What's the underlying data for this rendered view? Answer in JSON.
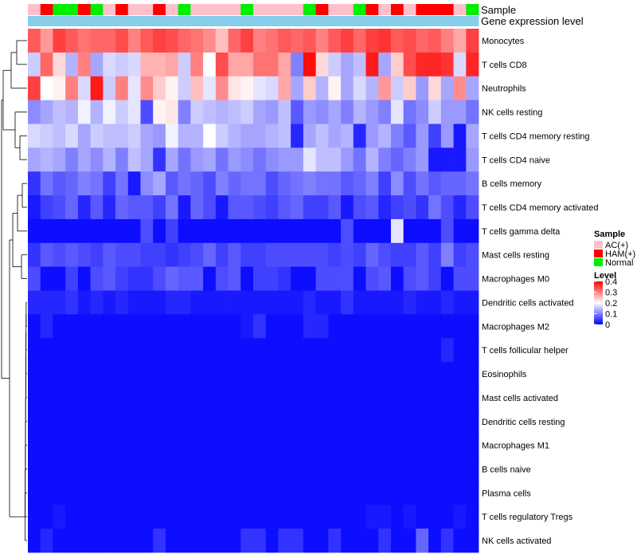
{
  "chart_data": {
    "type": "heatmap",
    "annotation_labels": {
      "sample": "Sample",
      "gene_expression": "Gene expression level"
    },
    "sample_groups": [
      "AC",
      "HAM",
      "Normal",
      "Normal",
      "HAM",
      "Normal",
      "AC",
      "HAM",
      "AC",
      "AC",
      "HAM",
      "AC",
      "Normal",
      "AC",
      "AC",
      "AC",
      "AC",
      "Normal",
      "AC",
      "AC",
      "AC",
      "AC",
      "Normal",
      "HAM",
      "AC",
      "AC",
      "Normal",
      "HAM",
      "AC",
      "HAM",
      "AC",
      "HAM",
      "HAM",
      "HAM",
      "AC",
      "Normal"
    ],
    "sample_legend": {
      "title": "Sample",
      "entries": [
        {
          "key": "AC",
          "label": "AC(+)",
          "color": "#ffc0cb"
        },
        {
          "key": "HAM",
          "label": "HAM(+)",
          "color": "#ff0000"
        },
        {
          "key": "Normal",
          "label": "Normal",
          "color": "#00ee00"
        }
      ]
    },
    "gene_expression_color": "#87ceeb",
    "level_legend": {
      "title": "Level",
      "ticks": [
        {
          "label": "0.4",
          "value": 0.4
        },
        {
          "label": "0.3",
          "value": 0.3
        },
        {
          "label": "0.2",
          "value": 0.2
        },
        {
          "label": "0.1",
          "value": 0.1
        },
        {
          "label": "0",
          "value": 0
        }
      ]
    },
    "color_scale": {
      "min": 0,
      "mid": 0.2,
      "max": 0.4,
      "low": "#0000ff",
      "mid_color": "#ffffff",
      "high": "#ff0000"
    },
    "rows": [
      "Monocytes",
      "T cells CD8",
      "Neutrophils",
      "NK cells resting",
      "T cells CD4 memory resting",
      "T cells CD4 naive",
      "B cells memory",
      "T cells CD4 memory activated",
      "T cells gamma delta",
      "Mast cells resting",
      "Macrophages M0",
      "Dendritic cells activated",
      "Macrophages M2",
      "T cells follicular helper",
      "Eosinophils",
      "Mast cells activated",
      "Dendritic cells resting",
      "Macrophages M1",
      "B cells naive",
      "Plasma cells",
      "T cells regulatory  Tregs",
      "NK cells activated"
    ],
    "values": [
      [
        0.33,
        0.28,
        0.35,
        0.33,
        0.31,
        0.32,
        0.32,
        0.34,
        0.3,
        0.33,
        0.35,
        0.34,
        0.32,
        0.31,
        0.29,
        0.25,
        0.32,
        0.35,
        0.3,
        0.31,
        0.33,
        0.32,
        0.33,
        0.3,
        0.33,
        0.35,
        0.32,
        0.35,
        0.36,
        0.33,
        0.34,
        0.32,
        0.33,
        0.3,
        0.27,
        0.35
      ],
      [
        0.16,
        0.32,
        0.23,
        0.14,
        0.3,
        0.13,
        0.17,
        0.16,
        0.17,
        0.26,
        0.26,
        0.27,
        0.16,
        0.3,
        0.2,
        0.34,
        0.27,
        0.27,
        0.31,
        0.31,
        0.27,
        0.1,
        0.39,
        0.23,
        0.16,
        0.13,
        0.15,
        0.38,
        0.13,
        0.24,
        0.34,
        0.37,
        0.37,
        0.36,
        0.17,
        0.37
      ],
      [
        0.35,
        0.2,
        0.21,
        0.3,
        0.17,
        0.38,
        0.16,
        0.3,
        0.18,
        0.29,
        0.24,
        0.21,
        0.16,
        0.25,
        0.18,
        0.29,
        0.22,
        0.21,
        0.18,
        0.17,
        0.27,
        0.13,
        0.24,
        0.14,
        0.21,
        0.13,
        0.17,
        0.14,
        0.28,
        0.16,
        0.24,
        0.12,
        0.23,
        0.13,
        0.29,
        0.13
      ],
      [
        0.11,
        0.13,
        0.15,
        0.14,
        0.19,
        0.14,
        0.19,
        0.16,
        0.18,
        0.06,
        0.21,
        0.22,
        0.1,
        0.16,
        0.15,
        0.14,
        0.15,
        0.16,
        0.13,
        0.12,
        0.15,
        0.07,
        0.12,
        0.11,
        0.13,
        0.1,
        0.14,
        0.12,
        0.1,
        0.18,
        0.09,
        0.11,
        0.16,
        0.12,
        0.12,
        0.09
      ],
      [
        0.17,
        0.16,
        0.15,
        0.17,
        0.13,
        0.16,
        0.15,
        0.15,
        0.16,
        0.13,
        0.12,
        0.19,
        0.14,
        0.14,
        0.2,
        0.16,
        0.14,
        0.13,
        0.13,
        0.14,
        0.15,
        0.03,
        0.13,
        0.15,
        0.13,
        0.14,
        0.03,
        0.12,
        0.14,
        0.1,
        0.07,
        0.12,
        0.05,
        0.12,
        0.02,
        0.13
      ],
      [
        0.13,
        0.14,
        0.13,
        0.1,
        0.13,
        0.11,
        0.14,
        0.1,
        0.15,
        0.13,
        0.04,
        0.13,
        0.09,
        0.12,
        0.13,
        0.09,
        0.12,
        0.11,
        0.09,
        0.11,
        0.12,
        0.12,
        0.18,
        0.15,
        0.15,
        0.12,
        0.09,
        0.14,
        0.1,
        0.08,
        0.1,
        0.12,
        0.02,
        0.02,
        0.02,
        0.12
      ],
      [
        0.04,
        0.09,
        0.07,
        0.08,
        0.1,
        0.09,
        0.05,
        0.09,
        0.02,
        0.11,
        0.13,
        0.07,
        0.09,
        0.08,
        0.06,
        0.1,
        0.08,
        0.09,
        0.09,
        0.06,
        0.08,
        0.09,
        0.1,
        0.09,
        0.09,
        0.07,
        0.08,
        0.1,
        0.05,
        0.11,
        0.06,
        0.09,
        0.07,
        0.08,
        0.08,
        0.09
      ],
      [
        0.02,
        0.05,
        0.06,
        0.08,
        0.03,
        0.07,
        0.03,
        0.08,
        0.07,
        0.07,
        0.05,
        0.09,
        0.02,
        0.08,
        0.06,
        0.02,
        0.07,
        0.07,
        0.06,
        0.05,
        0.07,
        0.08,
        0.05,
        0.05,
        0.07,
        0.02,
        0.06,
        0.07,
        0.03,
        0.05,
        0.06,
        0.04,
        0.09,
        0.06,
        0.03,
        0.06
      ],
      [
        0.01,
        0.01,
        0.01,
        0.01,
        0.01,
        0.01,
        0.01,
        0.01,
        0.01,
        0.06,
        0.01,
        0.05,
        0.01,
        0.01,
        0.01,
        0.01,
        0.01,
        0.01,
        0.01,
        0.01,
        0.01,
        0.01,
        0.01,
        0.01,
        0.01,
        0.06,
        0.01,
        0.01,
        0.01,
        0.18,
        0.01,
        0.01,
        0.01,
        0.06,
        0.01,
        0.01
      ],
      [
        0.04,
        0.07,
        0.06,
        0.07,
        0.06,
        0.05,
        0.07,
        0.06,
        0.06,
        0.05,
        0.05,
        0.04,
        0.05,
        0.06,
        0.08,
        0.05,
        0.07,
        0.05,
        0.05,
        0.06,
        0.06,
        0.06,
        0.06,
        0.06,
        0.05,
        0.06,
        0.05,
        0.08,
        0.06,
        0.05,
        0.05,
        0.07,
        0.05,
        0.1,
        0.05,
        0.06
      ],
      [
        0.06,
        0.01,
        0.01,
        0.05,
        0.01,
        0.06,
        0.07,
        0.05,
        0.04,
        0.04,
        0.06,
        0.08,
        0.07,
        0.07,
        0.01,
        0.06,
        0.07,
        0.01,
        0.05,
        0.05,
        0.04,
        0.01,
        0.01,
        0.06,
        0.06,
        0.06,
        0.01,
        0.06,
        0.07,
        0.01,
        0.06,
        0.07,
        0.05,
        0.01,
        0.06,
        0.06
      ],
      [
        0.03,
        0.03,
        0.03,
        0.04,
        0.02,
        0.03,
        0.02,
        0.03,
        0.02,
        0.02,
        0.02,
        0.03,
        0.03,
        0.02,
        0.02,
        0.02,
        0.02,
        0.02,
        0.02,
        0.02,
        0.02,
        0.02,
        0.03,
        0.02,
        0.02,
        0.04,
        0.02,
        0.02,
        0.02,
        0.02,
        0.03,
        0.02,
        0.02,
        0.03,
        0.02,
        0.02
      ],
      [
        0.01,
        0.03,
        0.01,
        0.01,
        0.01,
        0.01,
        0.01,
        0.01,
        0.01,
        0.01,
        0.01,
        0.01,
        0.01,
        0.01,
        0.01,
        0.01,
        0.01,
        0.02,
        0.04,
        0.01,
        0.01,
        0.01,
        0.03,
        0.03,
        0.01,
        0.01,
        0.01,
        0.01,
        0.01,
        0.01,
        0.01,
        0.01,
        0.01,
        0.01,
        0.01,
        0.01
      ],
      [
        0.01,
        0.01,
        0.01,
        0.01,
        0.01,
        0.01,
        0.01,
        0.01,
        0.01,
        0.01,
        0.01,
        0.01,
        0.01,
        0.01,
        0.01,
        0.01,
        0.01,
        0.01,
        0.01,
        0.01,
        0.01,
        0.01,
        0.01,
        0.01,
        0.01,
        0.01,
        0.01,
        0.01,
        0.01,
        0.01,
        0.01,
        0.01,
        0.01,
        0.03,
        0.01,
        0.01
      ],
      [
        0.01,
        0.01,
        0.01,
        0.01,
        0.01,
        0.01,
        0.01,
        0.01,
        0.01,
        0.01,
        0.01,
        0.01,
        0.01,
        0.01,
        0.01,
        0.01,
        0.01,
        0.01,
        0.01,
        0.01,
        0.01,
        0.01,
        0.01,
        0.01,
        0.01,
        0.01,
        0.01,
        0.01,
        0.01,
        0.01,
        0.01,
        0.01,
        0.01,
        0.01,
        0.01,
        0.01
      ],
      [
        0.01,
        0.01,
        0.01,
        0.01,
        0.01,
        0.01,
        0.01,
        0.01,
        0.01,
        0.01,
        0.01,
        0.01,
        0.01,
        0.01,
        0.01,
        0.01,
        0.01,
        0.01,
        0.01,
        0.01,
        0.01,
        0.01,
        0.01,
        0.01,
        0.01,
        0.01,
        0.01,
        0.01,
        0.01,
        0.01,
        0.01,
        0.01,
        0.01,
        0.01,
        0.01,
        0.01
      ],
      [
        0.01,
        0.01,
        0.01,
        0.01,
        0.01,
        0.01,
        0.01,
        0.01,
        0.01,
        0.01,
        0.01,
        0.01,
        0.01,
        0.01,
        0.01,
        0.01,
        0.01,
        0.01,
        0.01,
        0.01,
        0.01,
        0.01,
        0.01,
        0.01,
        0.01,
        0.01,
        0.01,
        0.01,
        0.01,
        0.01,
        0.01,
        0.01,
        0.01,
        0.01,
        0.01,
        0.01
      ],
      [
        0.01,
        0.01,
        0.01,
        0.01,
        0.01,
        0.01,
        0.01,
        0.01,
        0.01,
        0.01,
        0.01,
        0.01,
        0.01,
        0.01,
        0.01,
        0.01,
        0.01,
        0.01,
        0.01,
        0.01,
        0.01,
        0.01,
        0.01,
        0.01,
        0.01,
        0.01,
        0.01,
        0.01,
        0.01,
        0.01,
        0.01,
        0.01,
        0.01,
        0.01,
        0.01,
        0.01
      ],
      [
        0.01,
        0.01,
        0.01,
        0.01,
        0.01,
        0.01,
        0.01,
        0.01,
        0.01,
        0.01,
        0.01,
        0.01,
        0.01,
        0.01,
        0.01,
        0.01,
        0.01,
        0.01,
        0.01,
        0.01,
        0.01,
        0.01,
        0.01,
        0.01,
        0.01,
        0.01,
        0.01,
        0.01,
        0.01,
        0.01,
        0.01,
        0.01,
        0.01,
        0.01,
        0.01,
        0.01
      ],
      [
        0.01,
        0.01,
        0.01,
        0.01,
        0.01,
        0.01,
        0.01,
        0.01,
        0.01,
        0.01,
        0.01,
        0.01,
        0.01,
        0.01,
        0.01,
        0.01,
        0.01,
        0.01,
        0.01,
        0.01,
        0.01,
        0.01,
        0.01,
        0.01,
        0.01,
        0.01,
        0.01,
        0.01,
        0.01,
        0.01,
        0.01,
        0.01,
        0.01,
        0.01,
        0.01,
        0.01
      ],
      [
        0.01,
        0.01,
        0.02,
        0.01,
        0.01,
        0.01,
        0.01,
        0.01,
        0.01,
        0.01,
        0.01,
        0.01,
        0.01,
        0.01,
        0.01,
        0.01,
        0.01,
        0.01,
        0.01,
        0.01,
        0.01,
        0.01,
        0.01,
        0.01,
        0.01,
        0.01,
        0.01,
        0.02,
        0.02,
        0.01,
        0.02,
        0.01,
        0.01,
        0.01,
        0.02,
        0.01
      ],
      [
        0.01,
        0.03,
        0.01,
        0.01,
        0.01,
        0.01,
        0.01,
        0.01,
        0.01,
        0.01,
        0.04,
        0.01,
        0.01,
        0.01,
        0.01,
        0.01,
        0.01,
        0.04,
        0.04,
        0.01,
        0.04,
        0.04,
        0.01,
        0.01,
        0.04,
        0.01,
        0.01,
        0.01,
        0.04,
        0.01,
        0.01,
        0.08,
        0.01,
        0.04,
        0.01,
        0.01
      ]
    ]
  }
}
